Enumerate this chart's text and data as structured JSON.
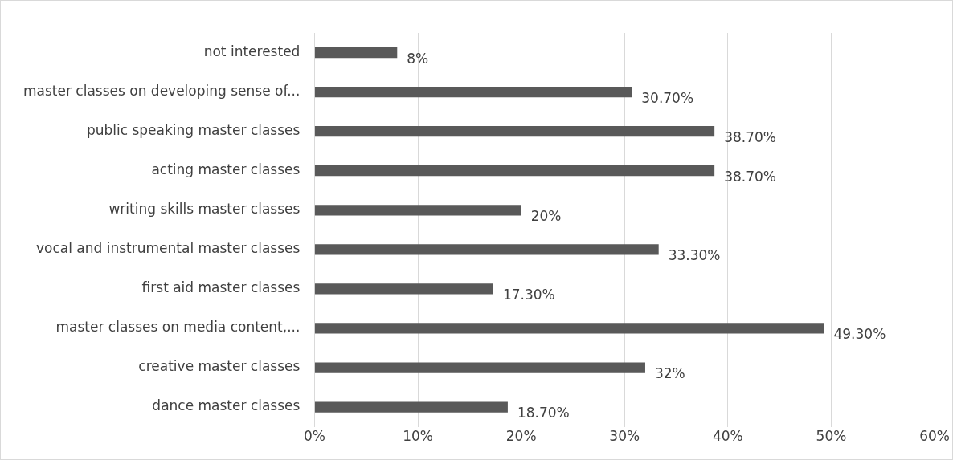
{
  "chart_data": {
    "type": "bar",
    "orientation": "horizontal",
    "categories": [
      "not interested",
      "master classes on developing sense of...",
      "public speaking master classes",
      "acting master classes",
      "writing skills master classes",
      "vocal and instrumental master classes",
      "first aid master classes",
      "master classes on media content,...",
      "creative master classes",
      "dance master classes"
    ],
    "values": [
      8,
      30.7,
      38.7,
      38.7,
      20,
      33.3,
      17.3,
      49.3,
      32,
      18.7
    ],
    "value_labels": [
      "8%",
      "30.70%",
      "38.70%",
      "38.70%",
      "20%",
      "33.30%",
      "17.30%",
      "49.30%",
      "32%",
      "18.70%"
    ],
    "color": "#595959",
    "xlim": [
      0,
      60
    ],
    "xticks": [
      {
        "value": 0,
        "label": "0%"
      },
      {
        "value": 10,
        "label": "10%"
      },
      {
        "value": 20,
        "label": "20%"
      },
      {
        "value": 30,
        "label": "30%"
      },
      {
        "value": 40,
        "label": "40%"
      },
      {
        "value": 50,
        "label": "50%"
      },
      {
        "value": 60,
        "label": "60%"
      }
    ],
    "grid": "x",
    "legend": false
  }
}
